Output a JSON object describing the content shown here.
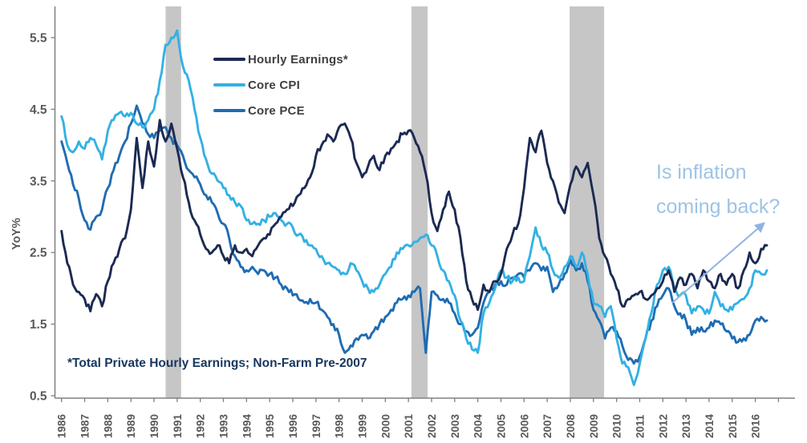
{
  "chart_data": {
    "type": "line",
    "title": "",
    "xlabel": "",
    "ylabel": "YoY%",
    "ylim": [
      0.5,
      5.95
    ],
    "yticks": [
      0.5,
      1.5,
      2.5,
      3.5,
      4.5,
      5.5
    ],
    "xticks": [
      1986,
      1987,
      1988,
      1989,
      1990,
      1991,
      1992,
      1993,
      1994,
      1995,
      1996,
      1997,
      1998,
      1999,
      2000,
      2001,
      2002,
      2003,
      2004,
      2005,
      2006,
      2007,
      2008,
      2009,
      2010,
      2011,
      2012,
      2013,
      2014,
      2015,
      2016
    ],
    "x_start": 1986.0,
    "x_step": 0.25,
    "grid": false,
    "legend_position": "top-left-inside",
    "recession_bands": [
      [
        1990.5,
        1991.17
      ],
      [
        2001.13,
        2001.83
      ],
      [
        2007.97,
        2009.46
      ]
    ],
    "recession_band_color": "#c6c6c6",
    "series": [
      {
        "name": "Hourly Earnings*",
        "color": "#1b2a52",
        "values": [
          2.8,
          2.35,
          2.05,
          1.95,
          1.85,
          1.68,
          1.92,
          1.75,
          2.1,
          2.35,
          2.55,
          2.7,
          3.1,
          4.1,
          3.4,
          4.05,
          3.7,
          4.35,
          4.05,
          4.3,
          3.95,
          3.55,
          3.2,
          2.95,
          2.75,
          2.55,
          2.5,
          2.6,
          2.45,
          2.35,
          2.6,
          2.5,
          2.55,
          2.45,
          2.6,
          2.7,
          2.75,
          2.9,
          3.0,
          3.1,
          3.15,
          3.3,
          3.4,
          3.55,
          3.85,
          4.0,
          4.15,
          4.05,
          4.25,
          4.3,
          4.1,
          3.75,
          3.55,
          3.7,
          3.85,
          3.65,
          3.85,
          3.95,
          4.05,
          4.15,
          4.2,
          4.1,
          3.9,
          3.6,
          3.05,
          2.8,
          3.1,
          3.35,
          3.1,
          2.7,
          2.1,
          1.85,
          1.7,
          2.05,
          1.95,
          2.1,
          2.2,
          2.55,
          2.75,
          2.9,
          3.4,
          4.1,
          3.9,
          4.2,
          3.75,
          3.5,
          3.2,
          3.05,
          3.45,
          3.7,
          3.55,
          3.75,
          3.3,
          2.7,
          2.45,
          2.2,
          2.0,
          1.75,
          1.85,
          1.9,
          1.95,
          1.85,
          1.9,
          2.0,
          2.1,
          2.25,
          1.95,
          2.15,
          2.05,
          2.2,
          2.0,
          2.25,
          2.1,
          2.0,
          2.2,
          2.05,
          2.2,
          2.0,
          2.25,
          2.5,
          2.35,
          2.55,
          2.6
        ]
      },
      {
        "name": "Core CPI",
        "color": "#33b1e4",
        "values": [
          4.4,
          4.0,
          3.9,
          4.05,
          3.95,
          4.1,
          4.0,
          3.8,
          4.2,
          4.35,
          4.45,
          4.4,
          4.45,
          4.3,
          4.25,
          4.35,
          4.5,
          4.9,
          5.4,
          5.5,
          5.6,
          5.1,
          4.9,
          4.5,
          4.1,
          3.8,
          3.6,
          3.5,
          3.4,
          3.3,
          3.2,
          3.15,
          2.95,
          2.9,
          2.9,
          2.95,
          3.0,
          3.05,
          2.95,
          2.9,
          2.85,
          2.75,
          2.65,
          2.6,
          2.55,
          2.45,
          2.35,
          2.3,
          2.25,
          2.2,
          2.35,
          2.25,
          2.1,
          2.0,
          1.95,
          2.05,
          2.2,
          2.3,
          2.5,
          2.55,
          2.6,
          2.65,
          2.7,
          2.75,
          2.6,
          2.45,
          2.25,
          2.1,
          1.9,
          1.55,
          1.3,
          1.15,
          1.1,
          1.65,
          1.8,
          2.0,
          2.25,
          2.15,
          2.1,
          2.15,
          2.1,
          2.45,
          2.85,
          2.6,
          2.5,
          2.25,
          2.15,
          2.3,
          2.45,
          2.3,
          2.5,
          2.2,
          1.8,
          1.75,
          1.6,
          1.75,
          1.3,
          0.95,
          0.9,
          0.65,
          0.95,
          1.3,
          1.65,
          2.05,
          2.25,
          2.3,
          2.0,
          1.9,
          1.9,
          1.65,
          1.75,
          1.7,
          1.65,
          1.95,
          1.75,
          1.7,
          1.7,
          1.8,
          1.85,
          2.0,
          2.25,
          2.2,
          2.25
        ]
      },
      {
        "name": "Core PCE",
        "color": "#1f6cb2",
        "values": [
          4.05,
          3.75,
          3.45,
          3.25,
          2.95,
          2.82,
          3.0,
          3.1,
          3.4,
          3.65,
          3.85,
          4.05,
          4.3,
          4.55,
          4.3,
          4.15,
          4.1,
          4.2,
          4.25,
          4.1,
          4.0,
          3.85,
          3.65,
          3.55,
          3.45,
          3.3,
          3.2,
          3.05,
          2.9,
          2.7,
          2.45,
          2.3,
          2.25,
          2.3,
          2.2,
          2.25,
          2.2,
          2.15,
          2.05,
          2.0,
          1.9,
          1.85,
          1.8,
          1.85,
          1.8,
          1.7,
          1.6,
          1.5,
          1.35,
          1.1,
          1.2,
          1.3,
          1.35,
          1.3,
          1.4,
          1.5,
          1.6,
          1.7,
          1.8,
          1.85,
          1.9,
          1.95,
          2.0,
          1.1,
          1.95,
          1.9,
          1.85,
          1.8,
          1.65,
          1.5,
          1.4,
          1.35,
          1.45,
          1.8,
          1.95,
          2.05,
          2.1,
          2.05,
          2.15,
          2.2,
          2.15,
          2.25,
          2.35,
          2.25,
          2.3,
          1.95,
          2.05,
          2.2,
          2.4,
          2.25,
          2.35,
          2.1,
          1.7,
          1.55,
          1.3,
          1.45,
          1.4,
          1.2,
          1.0,
          0.95,
          1.05,
          1.3,
          1.55,
          1.75,
          1.9,
          2.0,
          1.75,
          1.65,
          1.55,
          1.35,
          1.45,
          1.4,
          1.45,
          1.55,
          1.5,
          1.4,
          1.3,
          1.25,
          1.3,
          1.35,
          1.55,
          1.6,
          1.55
        ]
      }
    ]
  },
  "legend": {
    "items": [
      {
        "label": "Hourly Earnings*"
      },
      {
        "label": "Core CPI"
      },
      {
        "label": "Core PCE"
      }
    ]
  },
  "annotation": {
    "line1": "Is inflation",
    "line2": "coming back?",
    "color": "#9dc3e6",
    "arrow_color": "#8fb4e3"
  },
  "footnote": {
    "text": "*Total Private Hourly Earnings; Non-Farm Pre-2007",
    "color": "#17375e"
  },
  "axis": {
    "tick_label_color": "#595959",
    "axis_line_color": "#808080"
  }
}
